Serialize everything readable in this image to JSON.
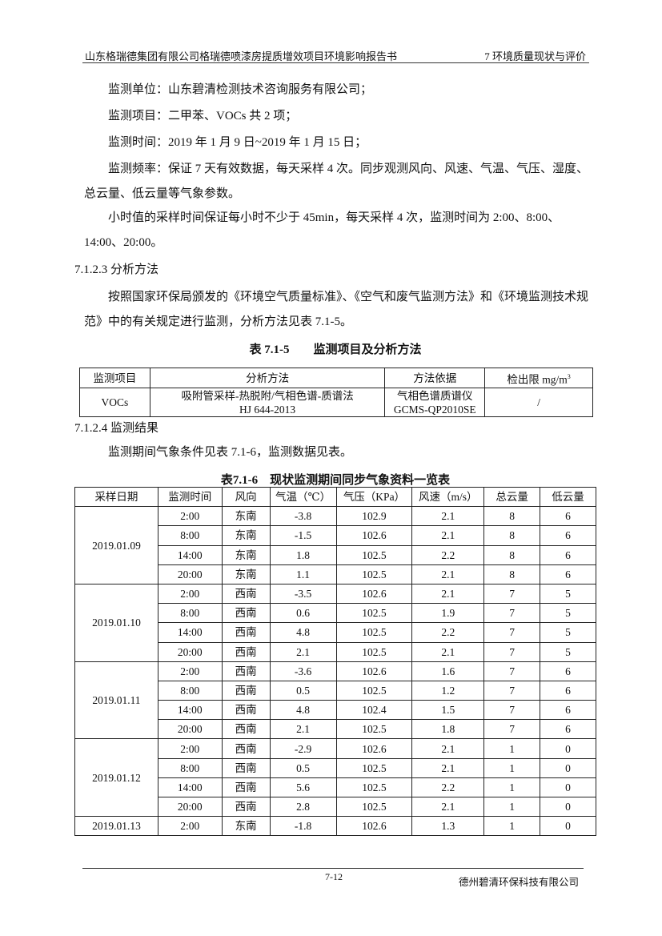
{
  "header": {
    "left": "山东格瑞德集团有限公司格瑞德喷漆房提质增效项目环境影响报告书",
    "right": "7 环境质量现状与评价"
  },
  "body": {
    "unit": "监测单位：山东碧清检测技术咨询服务有限公司；",
    "items": "监测项目：二甲苯、VOCs 共 2 项；",
    "time": "监测时间：2019 年 1 月 9 日~2019 年 1 月 15 日；",
    "freq": "监测频率：保证 7 天有效数据，每天采样 4 次。同步观测风向、风速、气温、气压、湿度、总云量、低云量等气象参数。",
    "hourly": "小时值的采样时间保证每小时不少于 45min，每天采样 4 次，监测时间为 2:00、8:00、14:00、20:00。",
    "sec3": "7.1.2.3  分析方法",
    "method_text": "按照国家环保局颁发的《环境空气质量标准》、《空气和废气监测方法》和《环境监测技术规范》中的有关规定进行监测，分析方法见表 7.1-5。",
    "sec4": "7.1.2.4  监测结果",
    "result_text": "监测期间气象条件见表 7.1-6，监测数据见表。"
  },
  "table5": {
    "caption": "表 7.1-5　　监测项目及分析方法",
    "headers": [
      "监测项目",
      "分析方法",
      "方法依据",
      "检出限 mg/m"
    ],
    "unit_sup": "3",
    "row": {
      "item": "VOCs",
      "method1": "吸附管采样-热脱附/气相色谱-质谱法",
      "method2": "HJ 644-2013",
      "basis1": "气相色谱质谱仪",
      "basis2": "GCMS-QP2010SE",
      "limit": "/"
    }
  },
  "table6": {
    "caption": "表7.1-6　现状监测期间同步气象资料一览表",
    "headers": [
      "采样日期",
      "监测时间",
      "风向",
      "气温（℃）",
      "气压（KPa）",
      "风速（m/s）",
      "总云量",
      "低云量"
    ],
    "groups": [
      {
        "date": "2019.01.09",
        "rows": [
          [
            "2:00",
            "东南",
            "-3.8",
            "102.9",
            "2.1",
            "8",
            "6"
          ],
          [
            "8:00",
            "东南",
            "-1.5",
            "102.6",
            "2.1",
            "8",
            "6"
          ],
          [
            "14:00",
            "东南",
            "1.8",
            "102.5",
            "2.2",
            "8",
            "6"
          ],
          [
            "20:00",
            "东南",
            "1.1",
            "102.5",
            "2.1",
            "8",
            "6"
          ]
        ]
      },
      {
        "date": "2019.01.10",
        "rows": [
          [
            "2:00",
            "西南",
            "-3.5",
            "102.6",
            "2.1",
            "7",
            "5"
          ],
          [
            "8:00",
            "西南",
            "0.6",
            "102.5",
            "1.9",
            "7",
            "5"
          ],
          [
            "14:00",
            "西南",
            "4.8",
            "102.5",
            "2.2",
            "7",
            "5"
          ],
          [
            "20:00",
            "西南",
            "2.1",
            "102.5",
            "2.1",
            "7",
            "5"
          ]
        ]
      },
      {
        "date": "2019.01.11",
        "rows": [
          [
            "2:00",
            "西南",
            "-3.6",
            "102.6",
            "1.6",
            "7",
            "6"
          ],
          [
            "8:00",
            "西南",
            "0.5",
            "102.5",
            "1.2",
            "7",
            "6"
          ],
          [
            "14:00",
            "西南",
            "4.8",
            "102.4",
            "1.5",
            "7",
            "6"
          ],
          [
            "20:00",
            "西南",
            "2.1",
            "102.5",
            "1.8",
            "7",
            "6"
          ]
        ]
      },
      {
        "date": "2019.01.12",
        "rows": [
          [
            "2:00",
            "西南",
            "-2.9",
            "102.6",
            "2.1",
            "1",
            "0"
          ],
          [
            "8:00",
            "西南",
            "0.5",
            "102.5",
            "2.1",
            "1",
            "0"
          ],
          [
            "14:00",
            "西南",
            "5.6",
            "102.5",
            "2.2",
            "1",
            "0"
          ],
          [
            "20:00",
            "西南",
            "2.8",
            "102.5",
            "2.1",
            "1",
            "0"
          ]
        ]
      },
      {
        "date": "2019.01.13",
        "rows": [
          [
            "2:00",
            "东南",
            "-1.8",
            "102.6",
            "1.3",
            "1",
            "0"
          ]
        ]
      }
    ]
  },
  "footer": {
    "page": "7-12",
    "company": "德州碧清环保科技有限公司"
  }
}
